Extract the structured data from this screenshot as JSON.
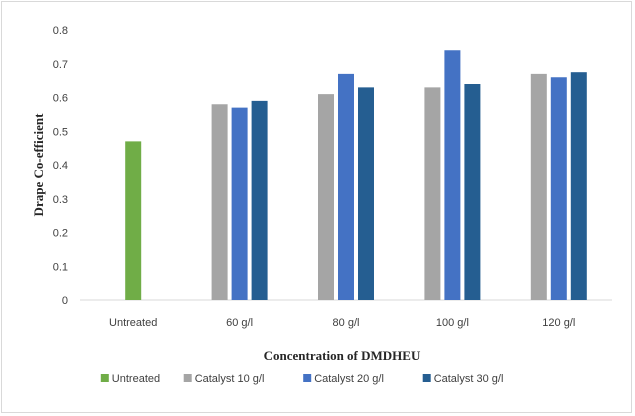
{
  "chart_data": {
    "type": "bar",
    "title": "",
    "xlabel": "Concentration of DMDHEU",
    "ylabel": "Drape Co-efficient",
    "ylim": [
      0,
      0.8
    ],
    "yticks": [
      "0",
      "0.1",
      "0.2",
      "0.3",
      "0.4",
      "0.5",
      "0.6",
      "0.7",
      "0.8"
    ],
    "categories": [
      "Untreated",
      "60 g/l",
      "80 g/l",
      "100 g/l",
      "120 g/l"
    ],
    "series": [
      {
        "name": "Untreated",
        "color": "#70ad47",
        "values": [
          0.47,
          null,
          null,
          null,
          null
        ]
      },
      {
        "name": "Catalyst 10 g/l",
        "color": "#a5a5a5",
        "values": [
          null,
          0.58,
          0.61,
          0.63,
          0.67
        ]
      },
      {
        "name": "Catalyst 20 g/l",
        "color": "#4472c4",
        "values": [
          null,
          0.57,
          0.67,
          0.74,
          0.66
        ]
      },
      {
        "name": "Catalyst 30 g/l",
        "color": "#255e91",
        "values": [
          null,
          0.59,
          0.63,
          0.64,
          0.675
        ]
      }
    ],
    "grid": false,
    "legend_position": "bottom"
  }
}
